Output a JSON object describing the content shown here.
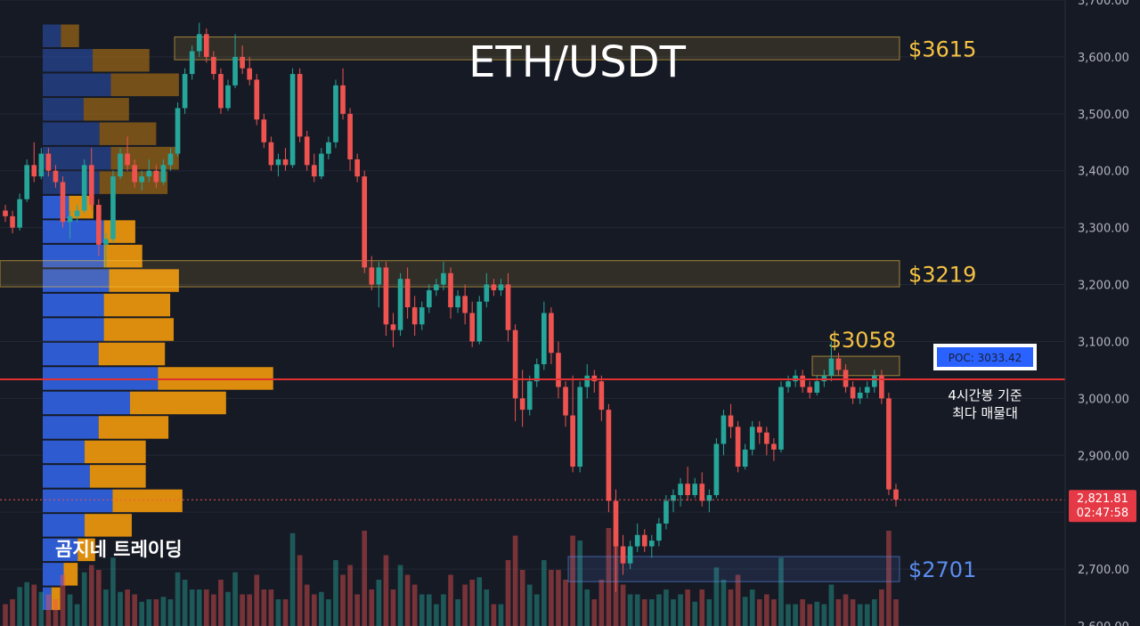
{
  "chart_data": {
    "type": "candlestick",
    "title": "ETH/USDT",
    "watermark": "곰지네 트레이딩",
    "y_axis": {
      "range": [
        2600,
        3700
      ],
      "tick_labels": [
        "3,700.00",
        "3,600.00",
        "3,500.00",
        "3,400.00",
        "3,300.00",
        "3,200.00",
        "3,100.00",
        "3,000.00",
        "2,900.00",
        "2,800.00",
        "2,700.00",
        "2,600.00"
      ],
      "ticks": [
        3700,
        3600,
        3500,
        3400,
        3300,
        3200,
        3100,
        3000,
        2900,
        2800,
        2700,
        2600
      ]
    },
    "current_price": {
      "value": 2821.81,
      "label": "2,821.81",
      "countdown": "02:47:58"
    },
    "poc": {
      "value": 3033.42,
      "label": "POC: 3033.42",
      "note_line1": "4시간봉 기준",
      "note_line2": "최다 매물대"
    },
    "zones": [
      {
        "label": "$3615",
        "low": 3595,
        "high": 3635,
        "color": "#f5c242"
      },
      {
        "label": "$3219",
        "low": 3196,
        "high": 3242,
        "color": "#f5c242"
      },
      {
        "label": "$3058",
        "low": 3040,
        "high": 3074,
        "color": "#f5c242"
      },
      {
        "label": "$2701",
        "low": 2678,
        "high": 2722,
        "color": "#5b8def"
      }
    ],
    "volume_profile": {
      "bin_size": 43,
      "bins": [
        {
          "price": 3637,
          "buy": 8,
          "sell": 8
        },
        {
          "price": 3594,
          "buy": 22,
          "sell": 25
        },
        {
          "price": 3551,
          "buy": 30,
          "sell": 30
        },
        {
          "price": 3508,
          "buy": 18,
          "sell": 20
        },
        {
          "price": 3465,
          "buy": 25,
          "sell": 25
        },
        {
          "price": 3422,
          "buy": 30,
          "sell": 30
        },
        {
          "price": 3379,
          "buy": 25,
          "sell": 30
        },
        {
          "price": 3336,
          "buy": 15,
          "sell": 14
        },
        {
          "price": 3293,
          "buy": 35,
          "sell": 18
        },
        {
          "price": 3250,
          "buy": 35,
          "sell": 22
        },
        {
          "price": 3207,
          "buy": 38,
          "sell": 40
        },
        {
          "price": 3164,
          "buy": 35,
          "sell": 38
        },
        {
          "price": 3121,
          "buy": 35,
          "sell": 40
        },
        {
          "price": 3078,
          "buy": 32,
          "sell": 38
        },
        {
          "price": 3035,
          "buy": 66,
          "sell": 66
        },
        {
          "price": 2992,
          "buy": 50,
          "sell": 55
        },
        {
          "price": 2949,
          "buy": 32,
          "sell": 40
        },
        {
          "price": 2906,
          "buy": 24,
          "sell": 35
        },
        {
          "price": 2863,
          "buy": 27,
          "sell": 32
        },
        {
          "price": 2820,
          "buy": 40,
          "sell": 40
        },
        {
          "price": 2777,
          "buy": 24,
          "sell": 27
        },
        {
          "price": 2734,
          "buy": 20,
          "sell": 10
        },
        {
          "price": 2691,
          "buy": 12,
          "sell": 8
        },
        {
          "price": 2648,
          "buy": 5,
          "sell": 5
        }
      ]
    },
    "candles": [
      [
        3330,
        3340,
        3310,
        3320
      ],
      [
        3320,
        3330,
        3290,
        3300
      ],
      [
        3300,
        3360,
        3295,
        3350
      ],
      [
        3350,
        3420,
        3345,
        3410
      ],
      [
        3410,
        3450,
        3380,
        3390
      ],
      [
        3390,
        3440,
        3385,
        3430
      ],
      [
        3430,
        3440,
        3390,
        3400
      ],
      [
        3400,
        3410,
        3370,
        3380
      ],
      [
        3380,
        3390,
        3300,
        3310
      ],
      [
        3310,
        3330,
        3280,
        3320
      ],
      [
        3320,
        3340,
        3310,
        3330
      ],
      [
        3330,
        3420,
        3325,
        3410
      ],
      [
        3410,
        3440,
        3330,
        3340
      ],
      [
        3340,
        3350,
        3250,
        3270
      ],
      [
        3270,
        3290,
        3230,
        3280
      ],
      [
        3280,
        3400,
        3275,
        3390
      ],
      [
        3390,
        3440,
        3385,
        3430
      ],
      [
        3430,
        3460,
        3400,
        3410
      ],
      [
        3410,
        3420,
        3370,
        3380
      ],
      [
        3380,
        3400,
        3365,
        3390
      ],
      [
        3390,
        3420,
        3380,
        3400
      ],
      [
        3400,
        3410,
        3370,
        3380
      ],
      [
        3380,
        3420,
        3375,
        3410
      ],
      [
        3410,
        3440,
        3400,
        3430
      ],
      [
        3430,
        3520,
        3425,
        3510
      ],
      [
        3510,
        3580,
        3500,
        3570
      ],
      [
        3570,
        3620,
        3560,
        3610
      ],
      [
        3610,
        3660,
        3600,
        3640
      ],
      [
        3640,
        3650,
        3590,
        3600
      ],
      [
        3600,
        3610,
        3560,
        3570
      ],
      [
        3570,
        3580,
        3500,
        3510
      ],
      [
        3510,
        3560,
        3505,
        3550
      ],
      [
        3550,
        3640,
        3545,
        3600
      ],
      [
        3600,
        3620,
        3570,
        3580
      ],
      [
        3580,
        3600,
        3550,
        3560
      ],
      [
        3560,
        3570,
        3480,
        3490
      ],
      [
        3490,
        3500,
        3440,
        3450
      ],
      [
        3450,
        3460,
        3400,
        3410
      ],
      [
        3410,
        3430,
        3390,
        3420
      ],
      [
        3420,
        3440,
        3400,
        3410
      ],
      [
        3410,
        3580,
        3405,
        3570
      ],
      [
        3570,
        3580,
        3450,
        3460
      ],
      [
        3460,
        3470,
        3400,
        3410
      ],
      [
        3410,
        3430,
        3380,
        3390
      ],
      [
        3390,
        3440,
        3385,
        3430
      ],
      [
        3430,
        3460,
        3420,
        3450
      ],
      [
        3450,
        3560,
        3440,
        3550
      ],
      [
        3550,
        3580,
        3490,
        3500
      ],
      [
        3500,
        3510,
        3400,
        3420
      ],
      [
        3420,
        3430,
        3380,
        3390
      ],
      [
        3390,
        3400,
        3220,
        3230
      ],
      [
        3230,
        3250,
        3190,
        3200
      ],
      [
        3200,
        3240,
        3160,
        3230
      ],
      [
        3230,
        3240,
        3110,
        3130
      ],
      [
        3130,
        3150,
        3090,
        3120
      ],
      [
        3120,
        3220,
        3110,
        3210
      ],
      [
        3210,
        3230,
        3140,
        3160
      ],
      [
        3160,
        3180,
        3110,
        3130
      ],
      [
        3130,
        3170,
        3120,
        3160
      ],
      [
        3160,
        3200,
        3150,
        3190
      ],
      [
        3190,
        3210,
        3180,
        3200
      ],
      [
        3200,
        3240,
        3190,
        3220
      ],
      [
        3220,
        3230,
        3140,
        3160
      ],
      [
        3160,
        3190,
        3150,
        3180
      ],
      [
        3180,
        3200,
        3130,
        3150
      ],
      [
        3150,
        3170,
        3090,
        3100
      ],
      [
        3100,
        3180,
        3095,
        3170
      ],
      [
        3170,
        3220,
        3160,
        3200
      ],
      [
        3200,
        3210,
        3180,
        3190
      ],
      [
        3190,
        3210,
        3180,
        3200
      ],
      [
        3200,
        3220,
        3100,
        3120
      ],
      [
        3120,
        3130,
        2960,
        3000
      ],
      [
        3000,
        3050,
        2950,
        2980
      ],
      [
        2980,
        3040,
        2970,
        3030
      ],
      [
        3030,
        3070,
        3020,
        3060
      ],
      [
        3060,
        3170,
        3050,
        3150
      ],
      [
        3150,
        3160,
        3060,
        3080
      ],
      [
        3080,
        3100,
        3000,
        3020
      ],
      [
        3020,
        3030,
        2950,
        2970
      ],
      [
        2970,
        3040,
        2870,
        2880
      ],
      [
        2880,
        3030,
        2870,
        3020
      ],
      [
        3020,
        3060,
        3000,
        3040
      ],
      [
        3040,
        3050,
        3010,
        3030
      ],
      [
        3030,
        3040,
        2960,
        2980
      ],
      [
        2980,
        2990,
        2800,
        2820
      ],
      [
        2820,
        2840,
        2660,
        2740
      ],
      [
        2740,
        2760,
        2690,
        2710
      ],
      [
        2710,
        2750,
        2700,
        2740
      ],
      [
        2740,
        2780,
        2730,
        2760
      ],
      [
        2760,
        2770,
        2730,
        2740
      ],
      [
        2740,
        2760,
        2720,
        2750
      ],
      [
        2750,
        2790,
        2740,
        2780
      ],
      [
        2780,
        2830,
        2770,
        2820
      ],
      [
        2820,
        2840,
        2800,
        2830
      ],
      [
        2830,
        2860,
        2810,
        2850
      ],
      [
        2850,
        2880,
        2820,
        2830
      ],
      [
        2830,
        2860,
        2825,
        2850
      ],
      [
        2850,
        2870,
        2810,
        2820
      ],
      [
        2820,
        2840,
        2800,
        2830
      ],
      [
        2830,
        2930,
        2825,
        2920
      ],
      [
        2920,
        2980,
        2900,
        2970
      ],
      [
        2970,
        2990,
        2930,
        2950
      ],
      [
        2950,
        2960,
        2870,
        2880
      ],
      [
        2880,
        2920,
        2875,
        2910
      ],
      [
        2910,
        2960,
        2900,
        2950
      ],
      [
        2950,
        2960,
        2920,
        2940
      ],
      [
        2940,
        2950,
        2900,
        2920
      ],
      [
        2920,
        2930,
        2890,
        2910
      ],
      [
        2910,
        3030,
        2905,
        3020
      ],
      [
        3020,
        3040,
        3010,
        3030
      ],
      [
        3030,
        3050,
        3020,
        3040
      ],
      [
        3040,
        3050,
        3010,
        3020
      ],
      [
        3020,
        3030,
        3000,
        3010
      ],
      [
        3010,
        3040,
        3005,
        3030
      ],
      [
        3030,
        3050,
        3020,
        3040
      ],
      [
        3040,
        3100,
        3030,
        3070
      ],
      [
        3070,
        3080,
        3040,
        3050
      ],
      [
        3050,
        3060,
        3010,
        3020
      ],
      [
        3020,
        3030,
        2990,
        3000
      ],
      [
        3000,
        3020,
        2990,
        3010
      ],
      [
        3010,
        3030,
        3000,
        3020
      ],
      [
        3020,
        3050,
        3010,
        3040
      ],
      [
        3040,
        3050,
        2990,
        3000
      ],
      [
        3000,
        3010,
        2830,
        2840
      ],
      [
        2840,
        2850,
        2810,
        2822
      ]
    ]
  }
}
